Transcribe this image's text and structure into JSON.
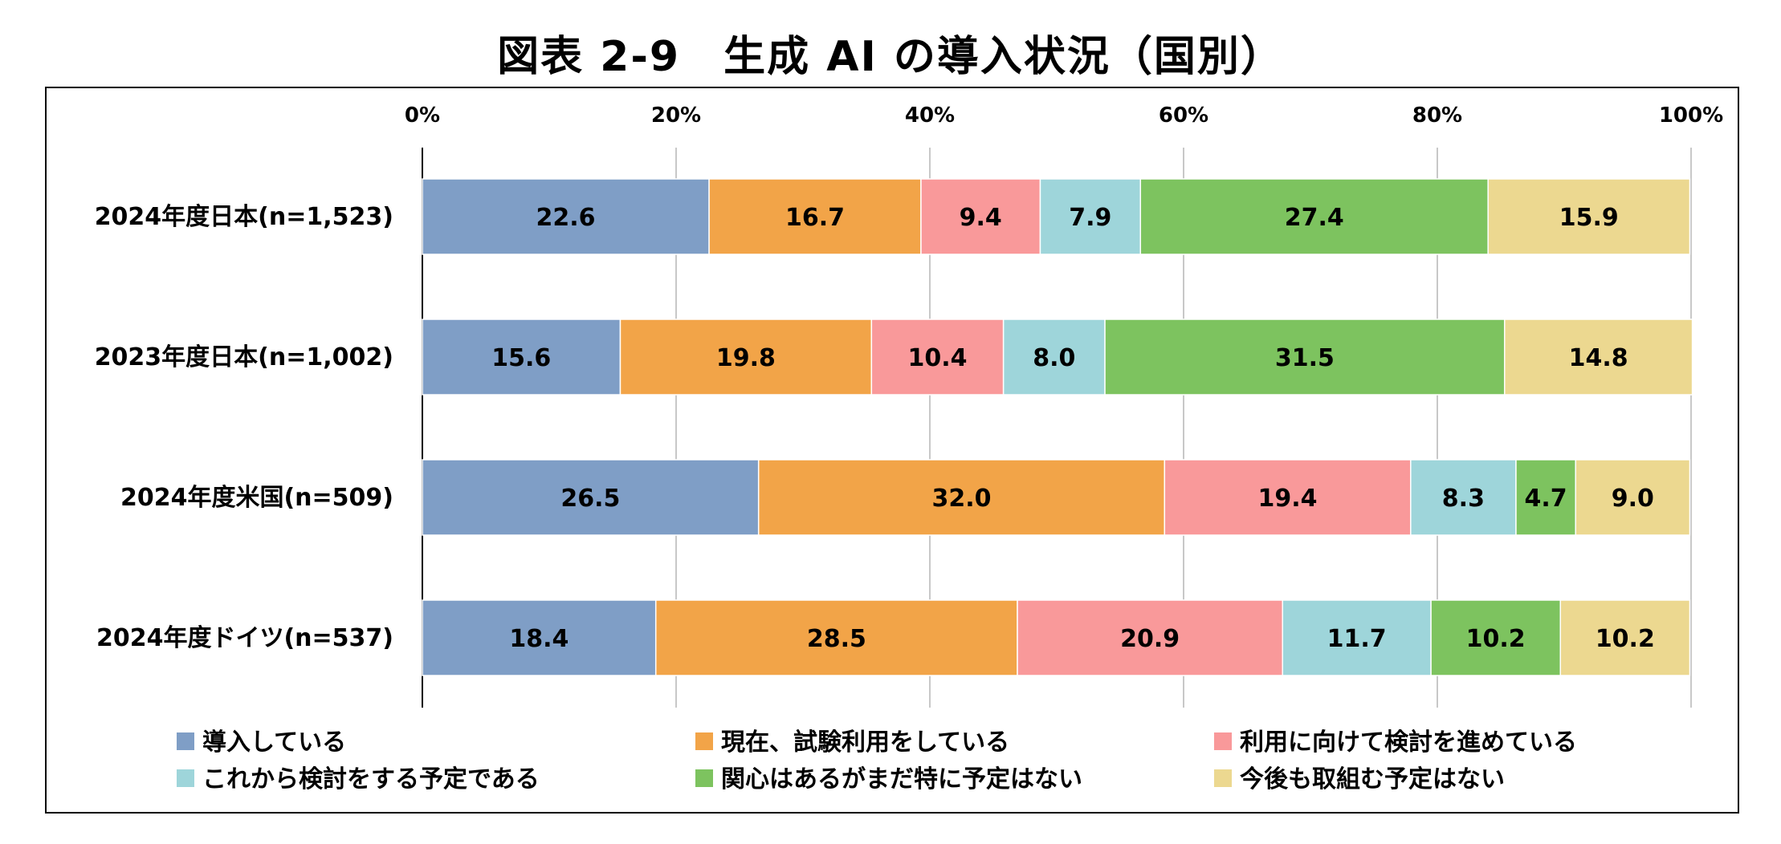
{
  "page_title": "図表 2-9　生成 AI の導入状況（国別）",
  "chart_data": {
    "type": "bar",
    "orientation": "horizontal",
    "stacked": true,
    "percent_stacked": true,
    "categories": [
      "2024年度日本(n=1,523)",
      "2023年度日本(n=1,002)",
      "2024年度米国(n=509)",
      "2024年度ドイツ(n=537)"
    ],
    "xlim": [
      0,
      100
    ],
    "x_ticks": [
      "0%",
      "20%",
      "40%",
      "60%",
      "80%",
      "100%"
    ],
    "grid": true,
    "legend_position": "bottom",
    "series": [
      {
        "name": "導入している",
        "color": "#7f9ec6",
        "values": [
          22.6,
          15.6,
          26.5,
          18.4
        ],
        "labels": [
          "22.6",
          "15.6",
          "26.5",
          "18.4"
        ]
      },
      {
        "name": "現在、試験利用をしている",
        "color": "#f2a448",
        "values": [
          16.7,
          19.8,
          32.0,
          28.5
        ],
        "labels": [
          "16.7",
          "19.8",
          "32.0",
          "28.5"
        ]
      },
      {
        "name": "利用に向けて検討を進めている",
        "color": "#f9999a",
        "values": [
          9.4,
          10.4,
          19.4,
          20.9
        ],
        "labels": [
          "9.4",
          "10.4",
          "19.4",
          "20.9"
        ]
      },
      {
        "name": "これから検討をする予定である",
        "color": "#9ed5da",
        "values": [
          7.9,
          8.0,
          8.3,
          11.7
        ],
        "labels": [
          "7.9",
          "8.0",
          "8.3",
          "11.7"
        ]
      },
      {
        "name": "関心はあるがまだ特に予定はない",
        "color": "#7dc35f",
        "values": [
          27.4,
          31.5,
          4.7,
          10.2
        ],
        "labels": [
          "27.4",
          "31.5",
          "4.7",
          "10.2"
        ]
      },
      {
        "name": "今後も取組む予定はない",
        "color": "#ecd890",
        "values": [
          15.9,
          14.8,
          9.0,
          10.2
        ],
        "labels": [
          "15.9",
          "14.8",
          "9.0",
          "10.2"
        ]
      }
    ]
  }
}
